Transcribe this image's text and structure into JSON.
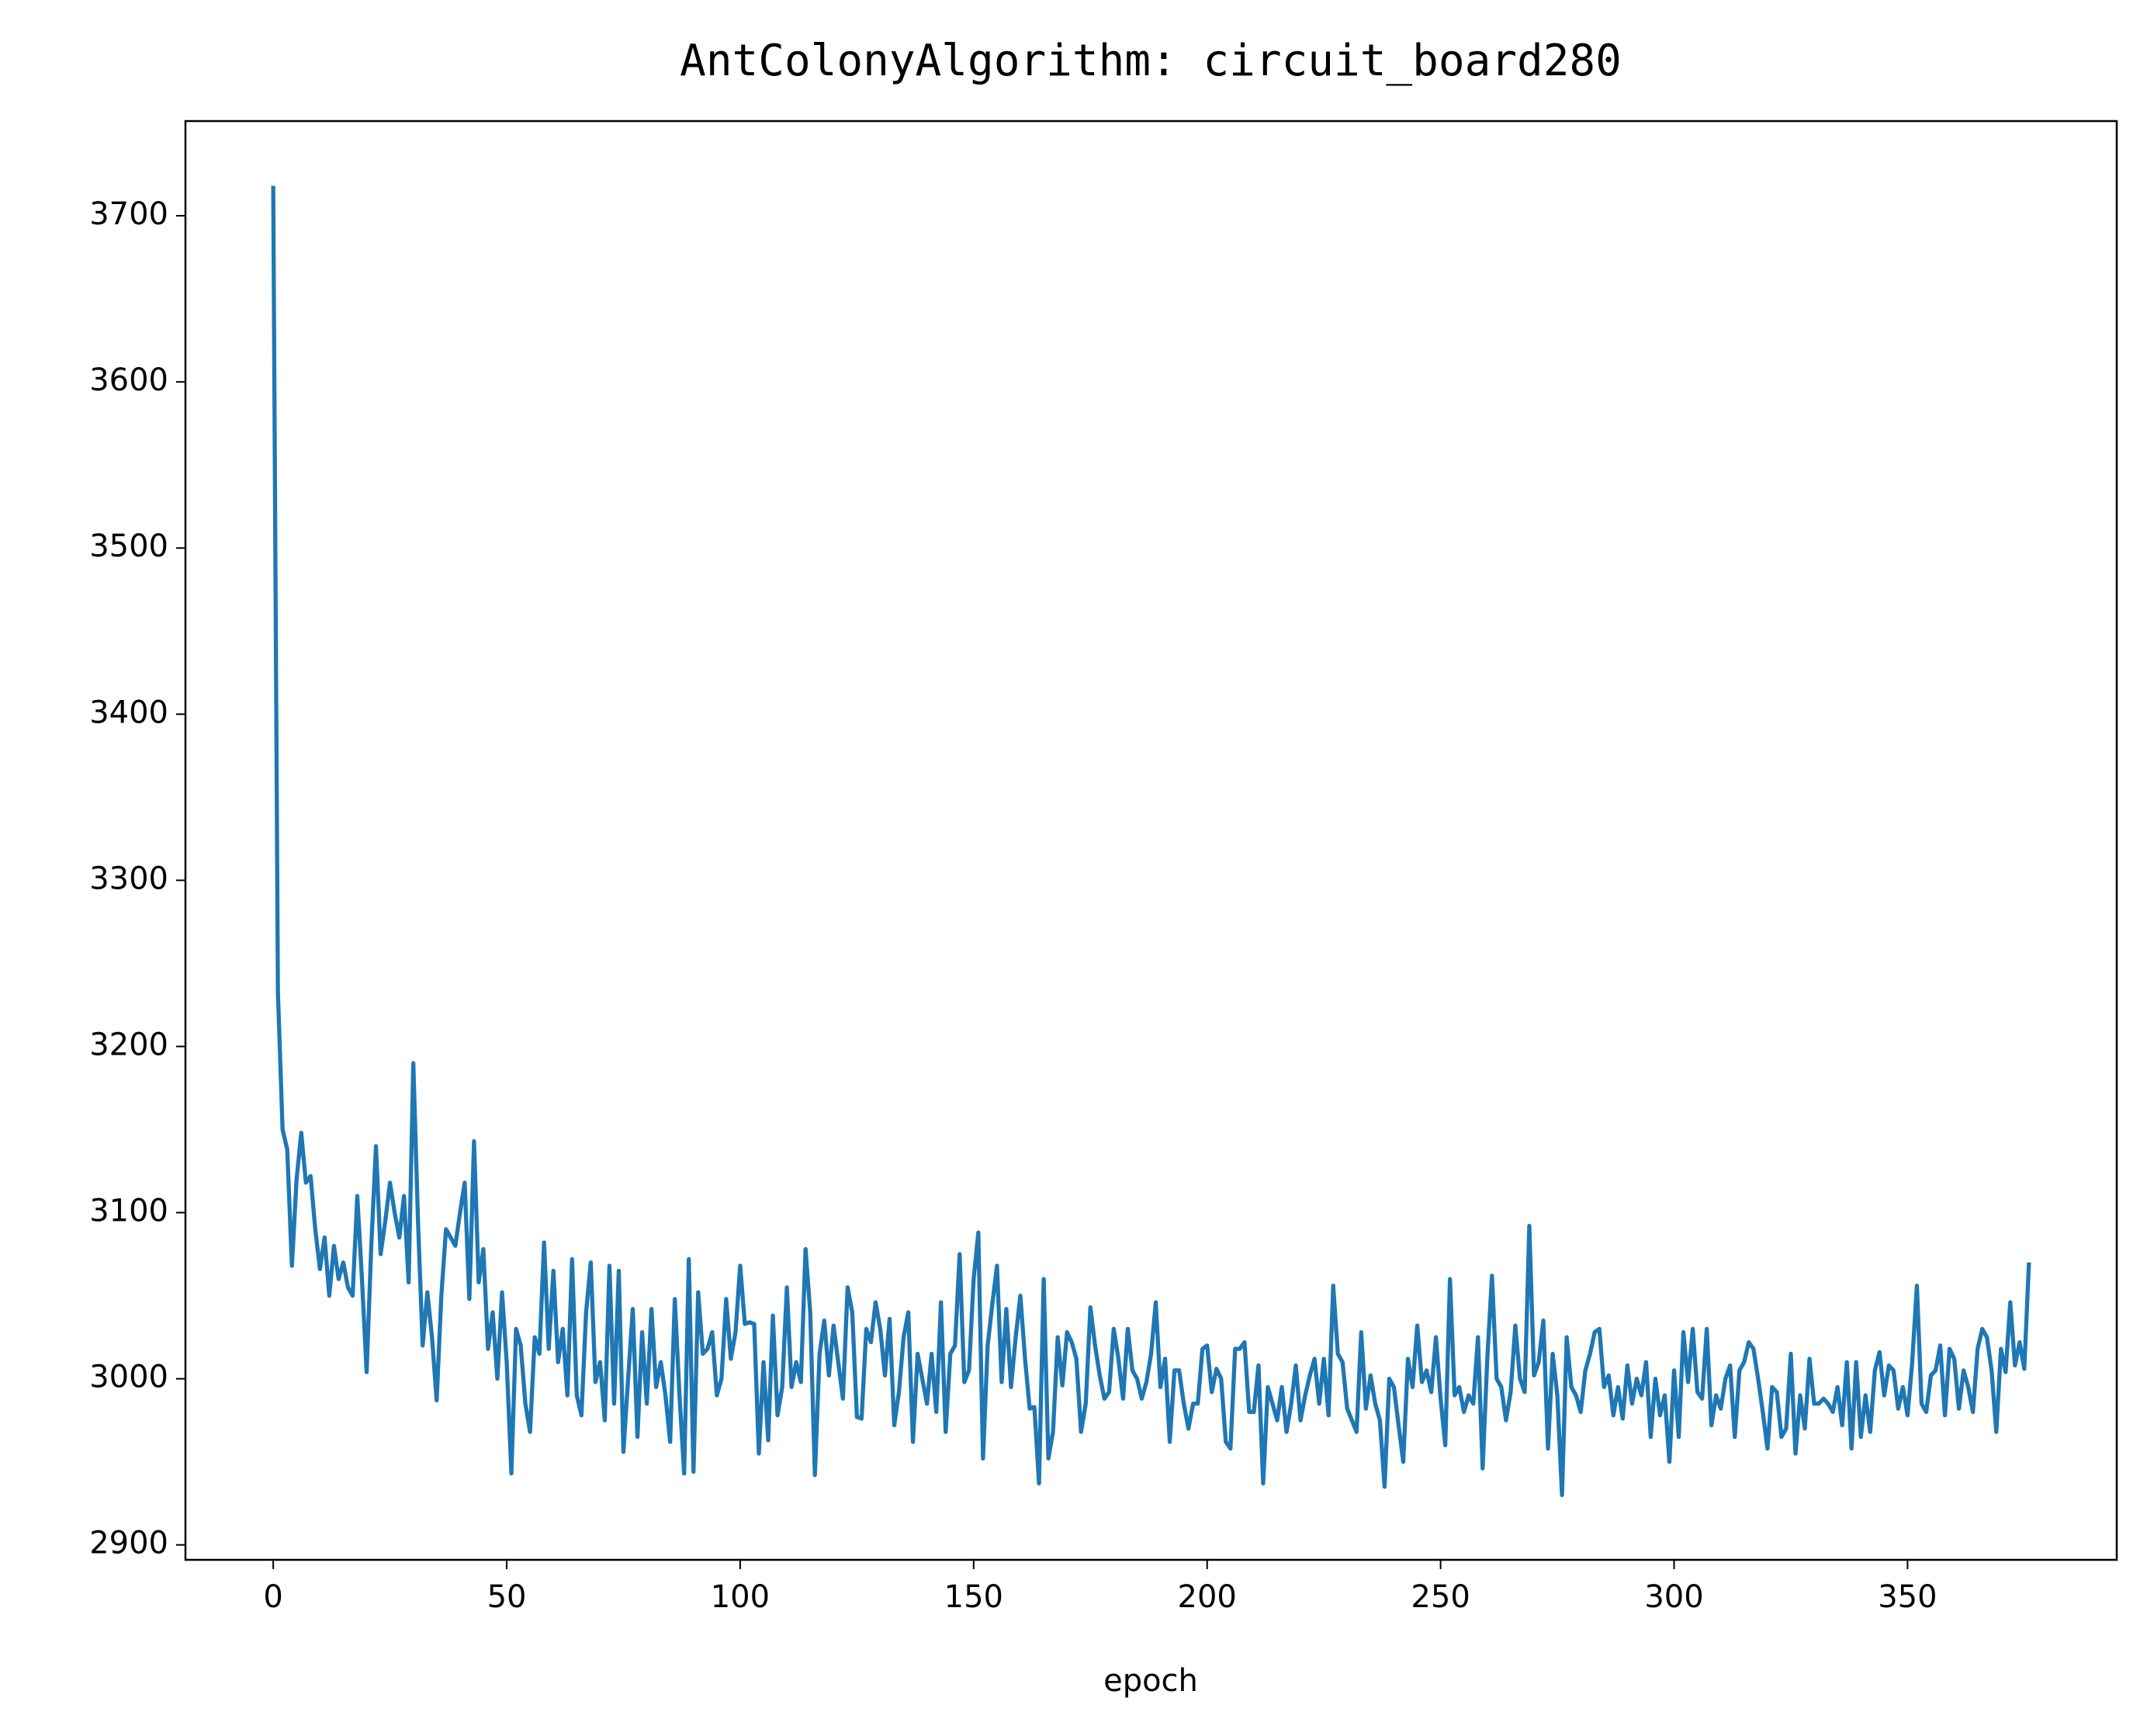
{
  "chart_data": {
    "type": "line",
    "title": "AntColonyAlgorithm: circuit_board280",
    "xlabel": "epoch",
    "xlim": [
      -18.8,
      394.8
    ],
    "ylim": [
      2891,
      3757
    ],
    "xticks": [
      0,
      50,
      100,
      150,
      200,
      250,
      300,
      350
    ],
    "yticks": [
      2900,
      3000,
      3100,
      3200,
      3300,
      3400,
      3500,
      3600,
      3700
    ],
    "grid": false,
    "x": [
      0,
      1,
      2,
      3,
      4,
      5,
      6,
      7,
      8,
      9,
      10,
      11,
      12,
      13,
      14,
      15,
      16,
      17,
      18,
      19,
      20,
      21,
      22,
      23,
      24,
      25,
      26,
      27,
      28,
      29,
      30,
      31,
      32,
      33,
      34,
      35,
      36,
      37,
      38,
      39,
      40,
      41,
      42,
      43,
      44,
      45,
      46,
      47,
      48,
      49,
      50,
      51,
      52,
      53,
      54,
      55,
      56,
      57,
      58,
      59,
      60,
      61,
      62,
      63,
      64,
      65,
      66,
      67,
      68,
      69,
      70,
      71,
      72,
      73,
      74,
      75,
      76,
      77,
      78,
      79,
      80,
      81,
      82,
      83,
      84,
      85,
      86,
      87,
      88,
      89,
      90,
      91,
      92,
      93,
      94,
      95,
      96,
      97,
      98,
      99,
      100,
      101,
      102,
      103,
      104,
      105,
      106,
      107,
      108,
      109,
      110,
      111,
      112,
      113,
      114,
      115,
      116,
      117,
      118,
      119,
      120,
      121,
      122,
      123,
      124,
      125,
      126,
      127,
      128,
      129,
      130,
      131,
      132,
      133,
      134,
      135,
      136,
      137,
      138,
      139,
      140,
      141,
      142,
      143,
      144,
      145,
      146,
      147,
      148,
      149,
      150,
      151,
      152,
      153,
      154,
      155,
      156,
      157,
      158,
      159,
      160,
      161,
      162,
      163,
      164,
      165,
      166,
      167,
      168,
      169,
      170,
      171,
      172,
      173,
      174,
      175,
      176,
      177,
      178,
      179,
      180,
      181,
      182,
      183,
      184,
      185,
      186,
      187,
      188,
      189,
      190,
      191,
      192,
      193,
      194,
      195,
      196,
      197,
      198,
      199,
      200,
      201,
      202,
      203,
      204,
      205,
      206,
      207,
      208,
      209,
      210,
      211,
      212,
      213,
      214,
      215,
      216,
      217,
      218,
      219,
      220,
      221,
      222,
      223,
      224,
      225,
      226,
      227,
      228,
      229,
      230,
      231,
      232,
      233,
      234,
      235,
      236,
      237,
      238,
      239,
      240,
      241,
      242,
      243,
      244,
      245,
      246,
      247,
      248,
      249,
      250,
      251,
      252,
      253,
      254,
      255,
      256,
      257,
      258,
      259,
      260,
      261,
      262,
      263,
      264,
      265,
      266,
      267,
      268,
      269,
      270,
      271,
      272,
      273,
      274,
      275,
      276,
      277,
      278,
      279,
      280,
      281,
      282,
      283,
      284,
      285,
      286,
      287,
      288,
      289,
      290,
      291,
      292,
      293,
      294,
      295,
      296,
      297,
      298,
      299,
      300,
      301,
      302,
      303,
      304,
      305,
      306,
      307,
      308,
      309,
      310,
      311,
      312,
      313,
      314,
      315,
      316,
      317,
      318,
      319,
      320,
      321,
      322,
      323,
      324,
      325,
      326,
      327,
      328,
      329,
      330,
      331,
      332,
      333,
      334,
      335,
      336,
      337,
      338,
      339,
      340,
      341,
      342,
      343,
      344,
      345,
      346,
      347,
      348,
      349,
      350,
      351,
      352,
      353,
      354,
      355,
      356,
      357,
      358,
      359,
      360,
      361,
      362,
      363,
      364,
      365,
      366,
      367,
      368,
      369,
      370,
      371,
      372,
      373,
      374,
      375,
      376
    ],
    "series": [
      {
        "name": "epoch",
        "color": "#1f77b4",
        "values": [
          3718,
          3233,
          3150,
          3138,
          3068,
          3120,
          3148,
          3118,
          3122,
          3090,
          3066,
          3085,
          3050,
          3080,
          3060,
          3070,
          3055,
          3050,
          3110,
          3060,
          3004,
          3080,
          3140,
          3075,
          3095,
          3118,
          3100,
          3085,
          3110,
          3058,
          3190,
          3095,
          3020,
          3052,
          3025,
          2987,
          3050,
          3090,
          3085,
          3080,
          3100,
          3118,
          3048,
          3143,
          3058,
          3078,
          3018,
          3040,
          3000,
          3052,
          3010,
          2943,
          3030,
          3020,
          2985,
          2968,
          3025,
          3015,
          3082,
          3018,
          3065,
          3010,
          3030,
          2990,
          3072,
          2990,
          2978,
          3040,
          3070,
          2998,
          3010,
          2975,
          3068,
          2985,
          3065,
          2956,
          3000,
          3042,
          2965,
          3028,
          2985,
          3042,
          2995,
          3010,
          2990,
          2962,
          3048,
          2990,
          2943,
          3072,
          2944,
          3052,
          3015,
          3018,
          3028,
          2990,
          3000,
          3048,
          3012,
          3028,
          3068,
          3033,
          3034,
          3033,
          2955,
          3010,
          2963,
          3038,
          2978,
          2995,
          3055,
          2995,
          3010,
          2998,
          3078,
          3040,
          2942,
          3015,
          3035,
          3002,
          3032,
          3010,
          2988,
          3055,
          3040,
          2977,
          2976,
          3030,
          3022,
          3046,
          3030,
          3002,
          3036,
          2972,
          2992,
          3025,
          3040,
          2962,
          3015,
          3000,
          2985,
          3015,
          2980,
          3046,
          2968,
          3015,
          3020,
          3075,
          2998,
          3005,
          3060,
          3088,
          2952,
          3020,
          3045,
          3068,
          2998,
          3042,
          2995,
          3025,
          3050,
          3012,
          2982,
          2983,
          2937,
          3060,
          2952,
          2968,
          3025,
          2996,
          3028,
          3022,
          3012,
          2968,
          2985,
          3043,
          3020,
          3002,
          2988,
          2992,
          3030,
          3012,
          2988,
          3030,
          3005,
          3000,
          2988,
          2998,
          3015,
          3046,
          2995,
          3012,
          2962,
          3005,
          3005,
          2985,
          2970,
          2985,
          2985,
          3018,
          3020,
          2992,
          3006,
          3000,
          2962,
          2958,
          3018,
          3018,
          3022,
          2980,
          2980,
          3008,
          2937,
          2995,
          2985,
          2975,
          2995,
          2968,
          2985,
          3008,
          2975,
          2990,
          3002,
          3012,
          2985,
          3012,
          2978,
          3056,
          3015,
          3010,
          2982,
          2975,
          2968,
          3028,
          2982,
          3002,
          2985,
          2975,
          2935,
          3000,
          2995,
          2972,
          2950,
          3012,
          2995,
          3032,
          2998,
          3005,
          2992,
          3025,
          2988,
          2960,
          3060,
          2990,
          2995,
          2980,
          2990,
          2985,
          3025,
          2946,
          3012,
          3062,
          3000,
          2995,
          2975,
          2992,
          3032,
          3000,
          2992,
          3092,
          3002,
          3010,
          3035,
          2958,
          3015,
          2990,
          2930,
          3025,
          2995,
          2990,
          2980,
          3005,
          3015,
          3028,
          3030,
          2995,
          3002,
          2978,
          2995,
          2976,
          3008,
          2985,
          3000,
          2990,
          3010,
          2965,
          3000,
          2978,
          2990,
          2950,
          3005,
          2965,
          3028,
          2998,
          3030,
          2992,
          2988,
          3030,
          2972,
          2990,
          2982,
          3000,
          3008,
          2965,
          3005,
          3010,
          3022,
          3018,
          3000,
          2980,
          2958,
          2995,
          2992,
          2965,
          2970,
          3015,
          2955,
          2990,
          2970,
          3012,
          2985,
          2985,
          2988,
          2985,
          2980,
          2995,
          2972,
          3010,
          2958,
          3010,
          2965,
          2990,
          2968,
          3005,
          3016,
          2990,
          3008,
          3005,
          2982,
          2995,
          2978,
          3010,
          3056,
          2985,
          2980,
          3002,
          3005,
          3020,
          2978,
          3018,
          3012,
          2982,
          3005,
          2995,
          2980,
          3018,
          3030,
          3025,
          3005,
          2968,
          3018,
          3004,
          3046,
          3008,
          3022,
          3006,
          3070
        ]
      }
    ]
  }
}
